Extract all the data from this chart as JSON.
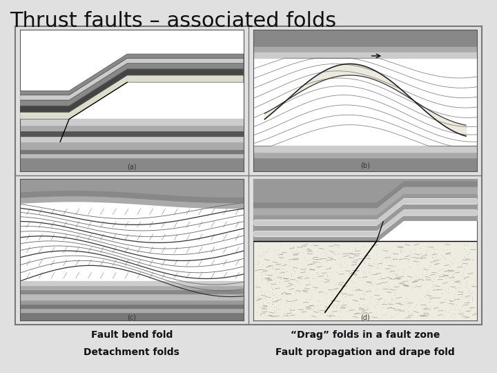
{
  "title": "Thrust faults – associated folds",
  "title_fontsize": 22,
  "bg_color": "#e0e0e0",
  "captions": {
    "a": "Fault bend fold",
    "b": "“Drag” folds in a fault zone",
    "c": "Detachment folds",
    "d": "Fault propagation and drape fold"
  },
  "sublabels": {
    "a": "(a)",
    "b": "(b)",
    "c": "(c)",
    "d": "(d)"
  },
  "caption_fontsize": 10,
  "sublabel_fontsize": 7
}
